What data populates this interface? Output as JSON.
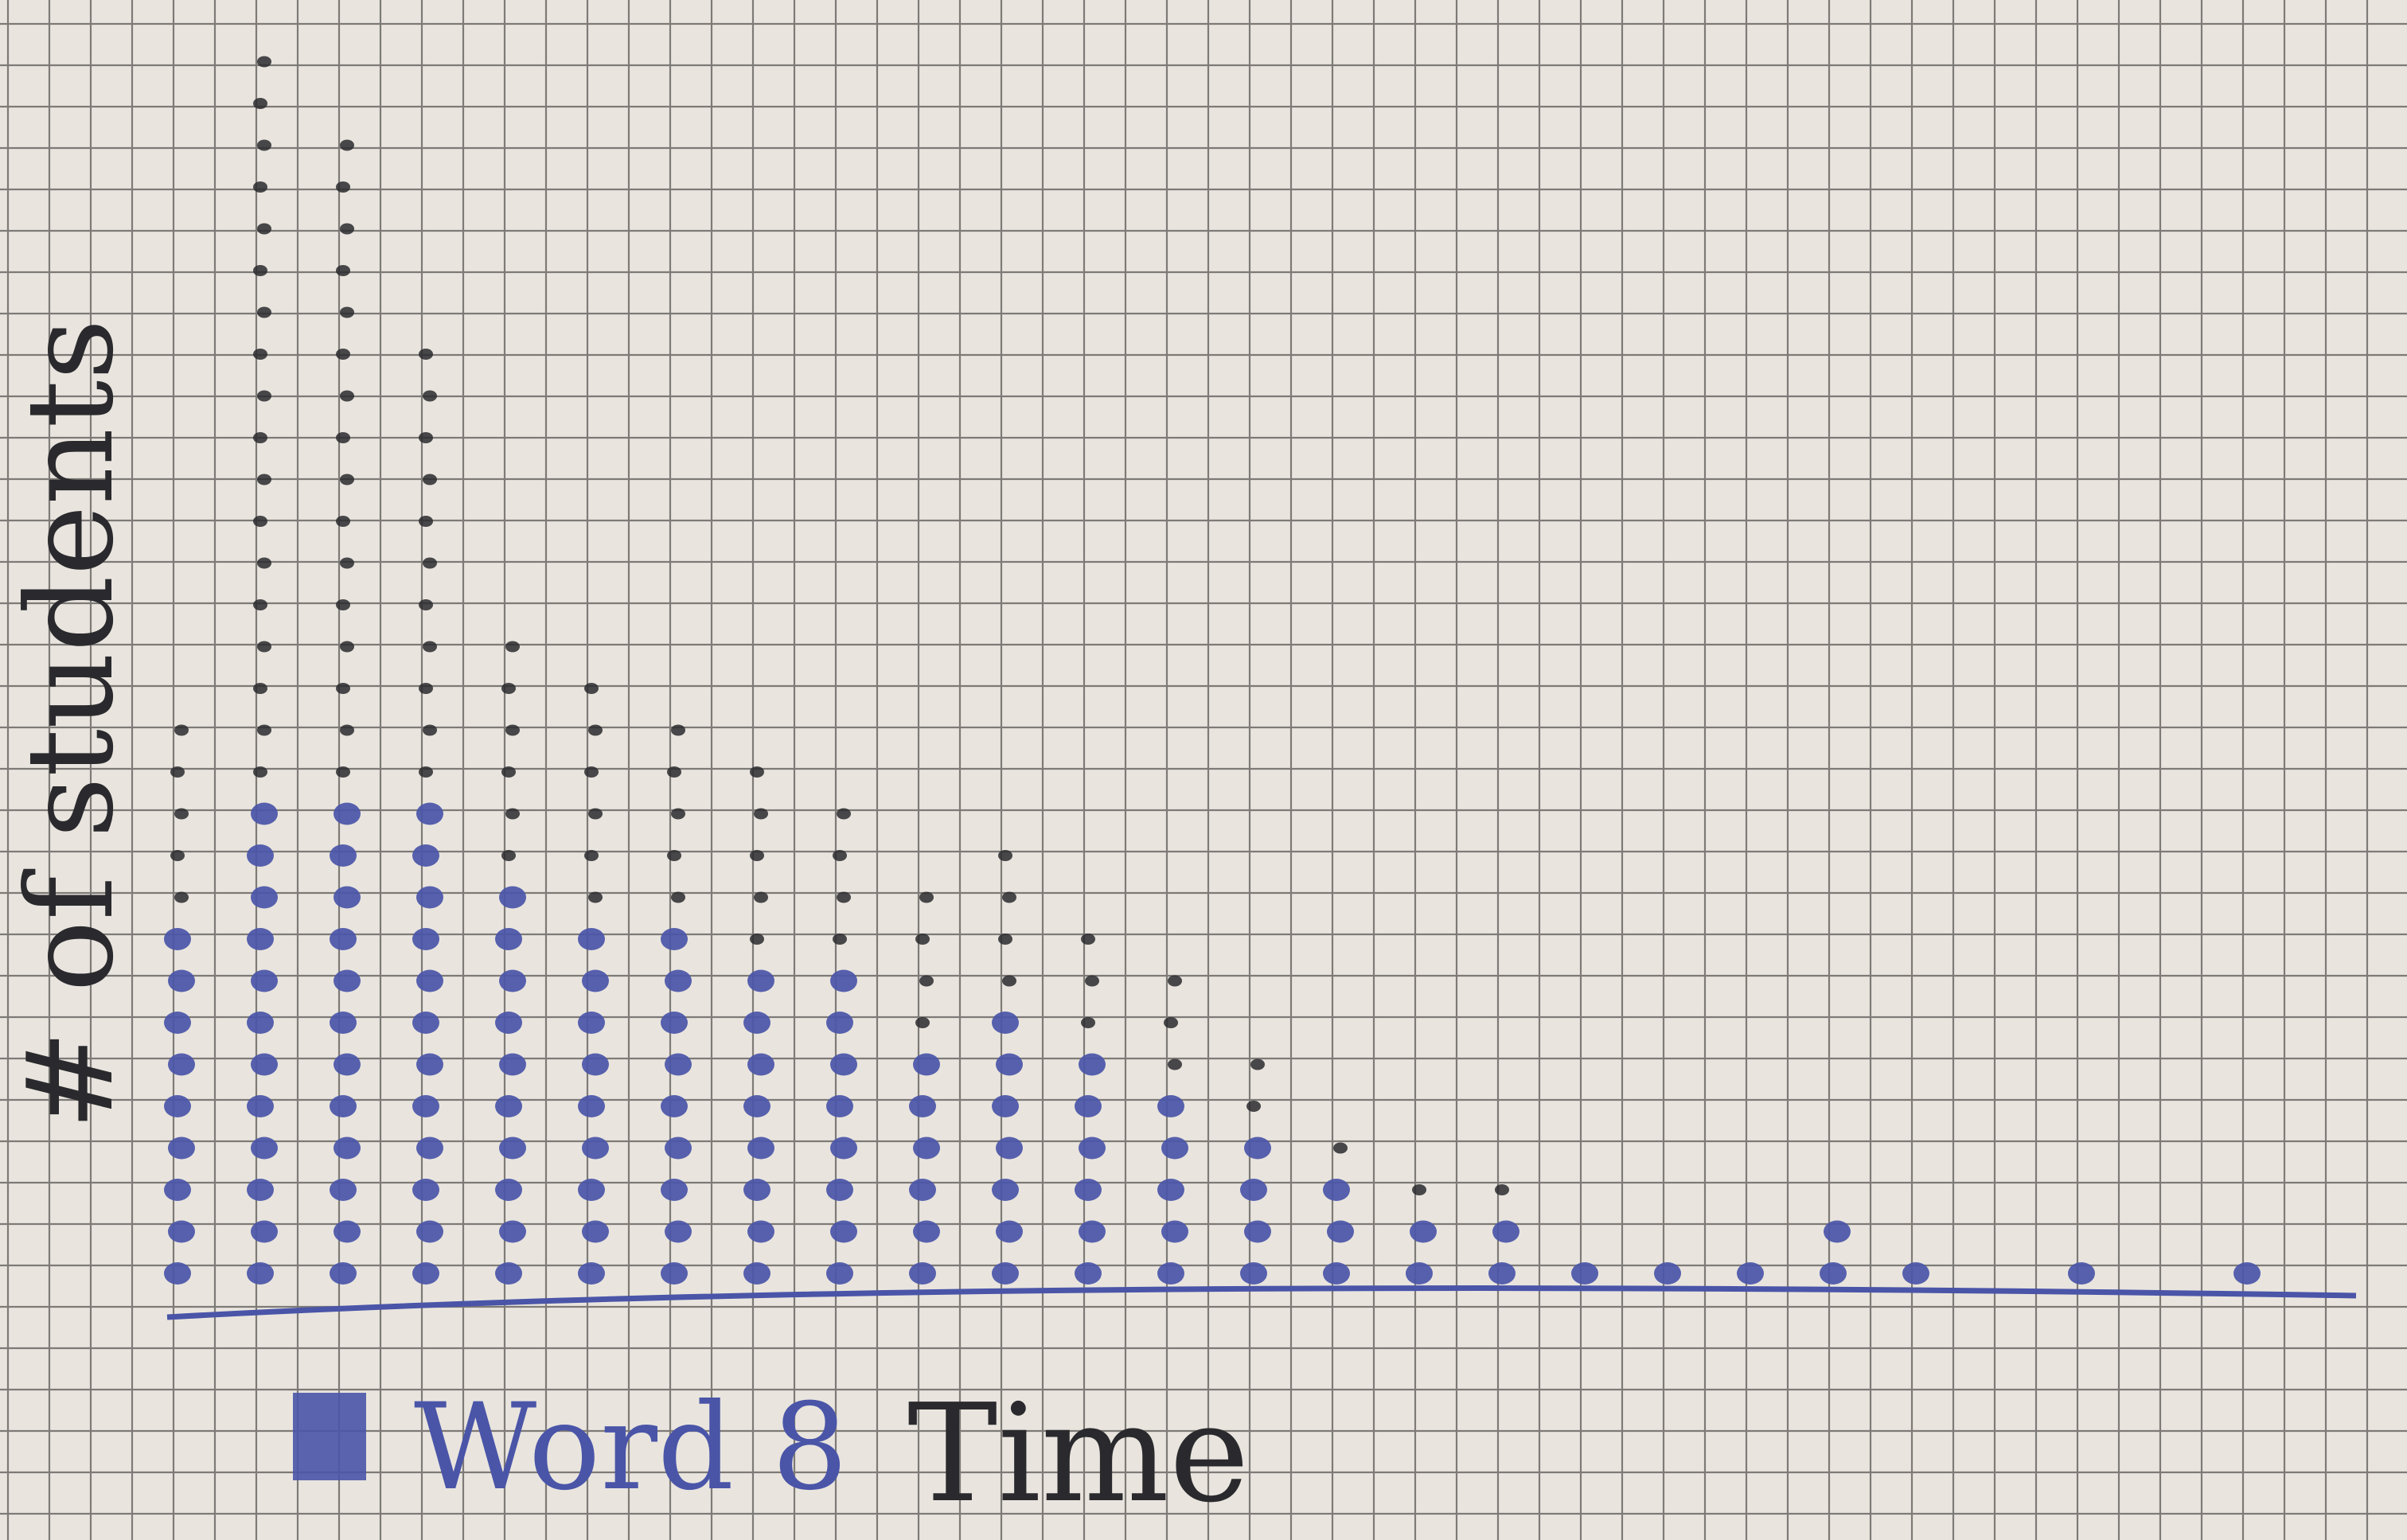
{
  "chart_data": {
    "type": "scatter",
    "subtype": "dot-plot",
    "title": "",
    "xlabel": "Time",
    "ylabel": "# of students",
    "legend": {
      "label": "Word 8",
      "placement": "bottom-left"
    },
    "grid": true,
    "xlim": [
      1,
      27
    ],
    "ylim": [
      0,
      29
    ],
    "x_ticks_shown": false,
    "columns": [
      {
        "x": 1,
        "count": 14
      },
      {
        "x": 2,
        "count": 30
      },
      {
        "x": 3,
        "count": 28
      },
      {
        "x": 4,
        "count": 23
      },
      {
        "x": 5,
        "count": 16
      },
      {
        "x": 6,
        "count": 15
      },
      {
        "x": 7,
        "count": 14
      },
      {
        "x": 8,
        "count": 13
      },
      {
        "x": 9,
        "count": 12
      },
      {
        "x": 10,
        "count": 10
      },
      {
        "x": 11,
        "count": 11
      },
      {
        "x": 12,
        "count": 9
      },
      {
        "x": 13,
        "count": 8
      },
      {
        "x": 14,
        "count": 6
      },
      {
        "x": 15,
        "count": 4
      },
      {
        "x": 16,
        "count": 3
      },
      {
        "x": 17,
        "count": 3
      },
      {
        "x": 18,
        "count": 1
      },
      {
        "x": 19,
        "count": 1
      },
      {
        "x": 20,
        "count": 1
      },
      {
        "x": 21,
        "count": 2
      },
      {
        "x": 22,
        "count": 1
      },
      {
        "x": 24,
        "count": 1
      },
      {
        "x": 26,
        "count": 1
      }
    ]
  },
  "colors": {
    "paper": "#e9e5de",
    "grid": "#7d7a77",
    "blue_ink": "#4a55a8",
    "black_ink": "#2a2a2e"
  }
}
